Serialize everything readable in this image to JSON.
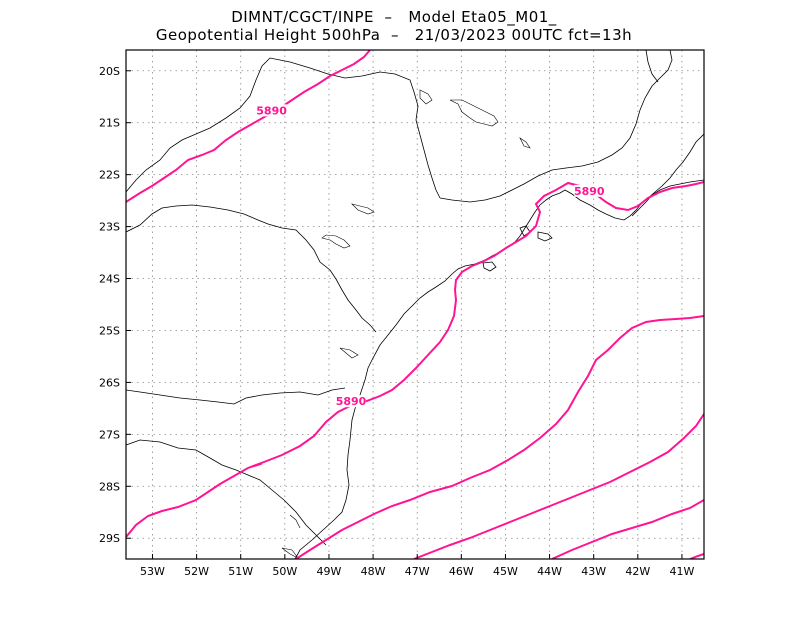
{
  "title": {
    "line1": "DIMNT/CGCT/INPE  –   Model Eta05_M01_",
    "line2": "Geopotential Height 500hPa  –   21/03/2023 00UTC fct=13h"
  },
  "map": {
    "lon_range": [
      -53.6,
      -40.5
    ],
    "lat_range": [
      -29.4,
      -19.6
    ],
    "lon_ticks": [
      "53W",
      "52W",
      "51W",
      "50W",
      "49W",
      "48W",
      "47W",
      "46W",
      "45W",
      "44W",
      "43W",
      "42W",
      "41W"
    ],
    "lat_ticks": [
      "20S",
      "21S",
      "22S",
      "23S",
      "24S",
      "25S",
      "26S",
      "27S",
      "28S",
      "29S"
    ],
    "grid": "dotted",
    "contour_color": "#ff1493",
    "contour_labels": [
      {
        "text": "5890",
        "lon": -50.3,
        "lat": -20.8
      },
      {
        "text": "5890",
        "lon": -43.1,
        "lat": -22.35
      },
      {
        "text": "5890",
        "lon": -48.5,
        "lat": -26.4
      }
    ]
  }
}
